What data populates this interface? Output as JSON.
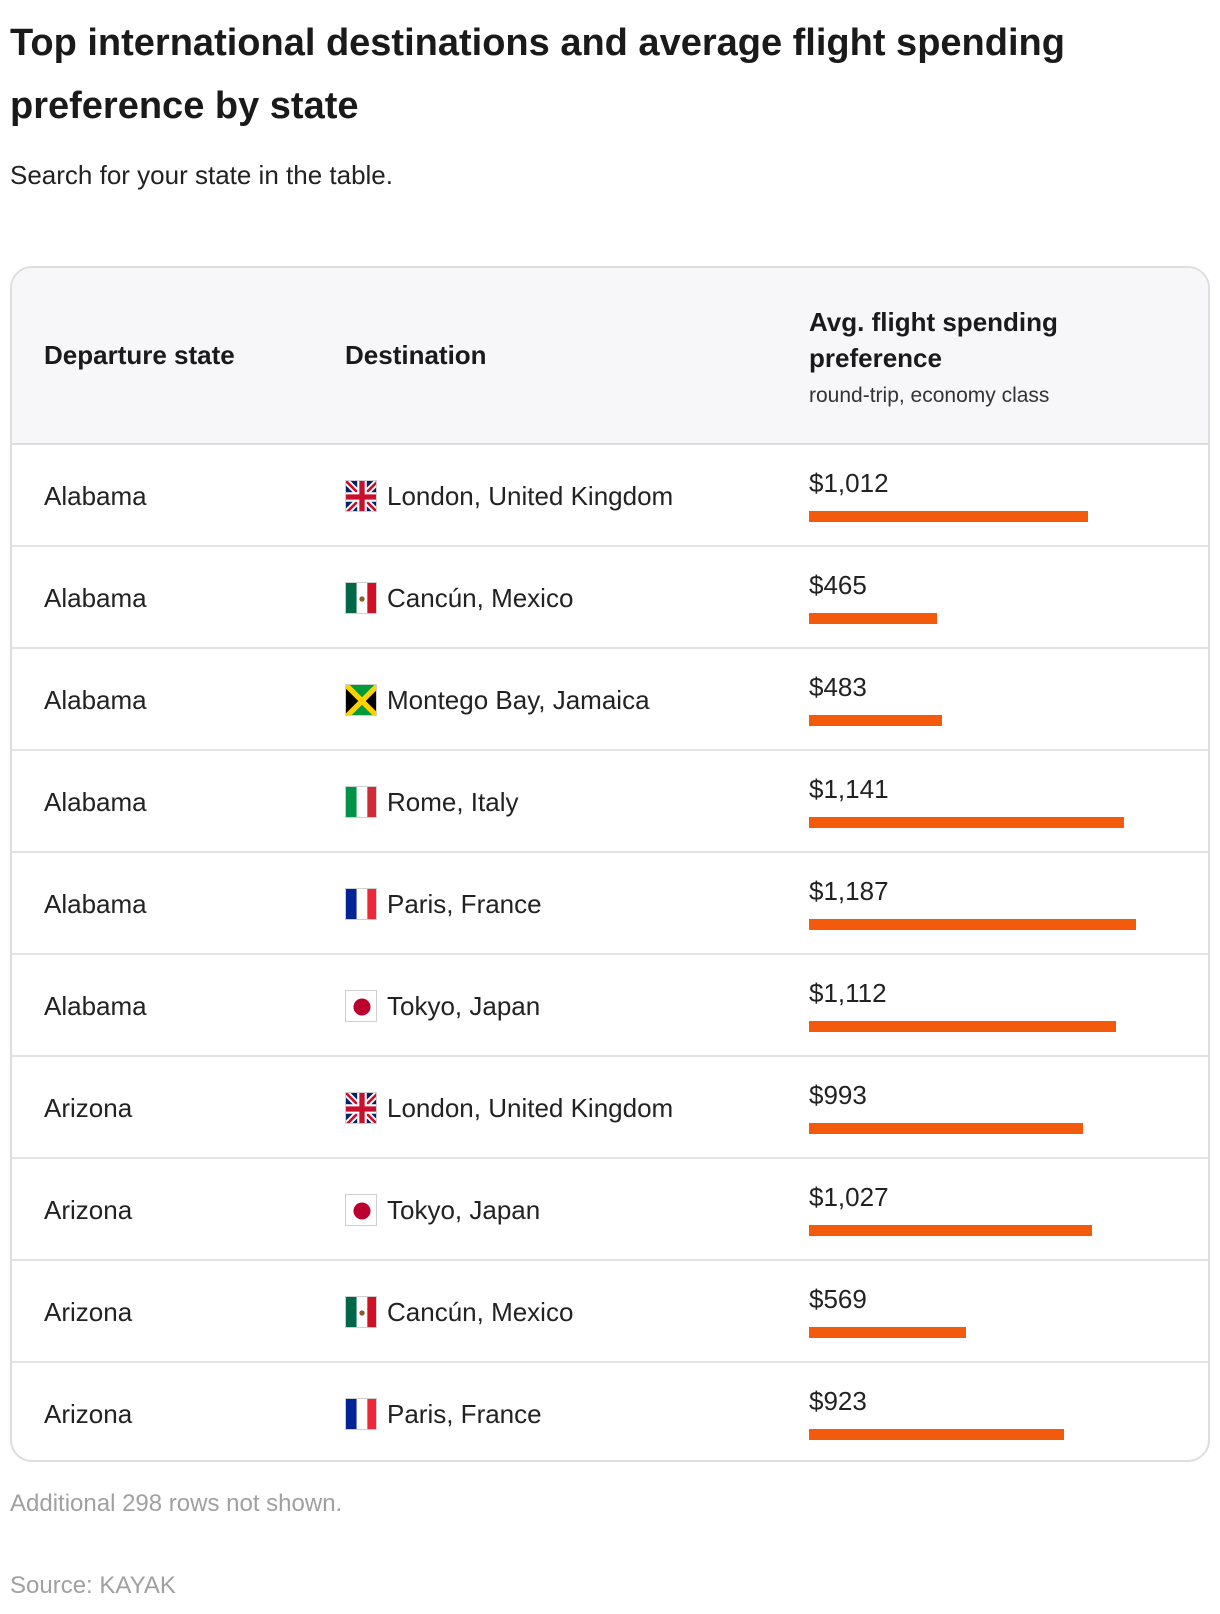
{
  "header": {
    "title": "Top international destinations and average flight spending preference by state",
    "subtitle": "Search for your state in the table."
  },
  "table": {
    "columns": {
      "state": "Departure state",
      "destination": "Destination",
      "spend": "Avg. flight spending preference",
      "spend_note": "round-trip, economy class"
    }
  },
  "footer": {
    "note": "Additional 298 rows not shown.",
    "source": "Source: KAYAK"
  },
  "colors": {
    "bar": "#f35a0c"
  },
  "chart_data": {
    "type": "table",
    "bar_max_value": 1450,
    "rows": [
      {
        "state": "Alabama",
        "destination": "London, United Kingdom",
        "flag": "uk-flag-icon",
        "spend_label": "$1,012",
        "value": 1012
      },
      {
        "state": "Alabama",
        "destination": "Cancún, Mexico",
        "flag": "mexico-flag-icon",
        "spend_label": "$465",
        "value": 465
      },
      {
        "state": "Alabama",
        "destination": "Montego Bay, Jamaica",
        "flag": "jamaica-flag-icon",
        "spend_label": "$483",
        "value": 483
      },
      {
        "state": "Alabama",
        "destination": "Rome, Italy",
        "flag": "italy-flag-icon",
        "spend_label": "$1,141",
        "value": 1141
      },
      {
        "state": "Alabama",
        "destination": "Paris, France",
        "flag": "france-flag-icon",
        "spend_label": "$1,187",
        "value": 1187
      },
      {
        "state": "Alabama",
        "destination": "Tokyo, Japan",
        "flag": "japan-flag-icon",
        "spend_label": "$1,112",
        "value": 1112
      },
      {
        "state": "Arizona",
        "destination": "London, United Kingdom",
        "flag": "uk-flag-icon",
        "spend_label": "$993",
        "value": 993
      },
      {
        "state": "Arizona",
        "destination": "Tokyo, Japan",
        "flag": "japan-flag-icon",
        "spend_label": "$1,027",
        "value": 1027
      },
      {
        "state": "Arizona",
        "destination": "Cancún, Mexico",
        "flag": "mexico-flag-icon",
        "spend_label": "$569",
        "value": 569
      },
      {
        "state": "Arizona",
        "destination": "Paris, France",
        "flag": "france-flag-icon",
        "spend_label": "$923",
        "value": 923
      }
    ]
  }
}
